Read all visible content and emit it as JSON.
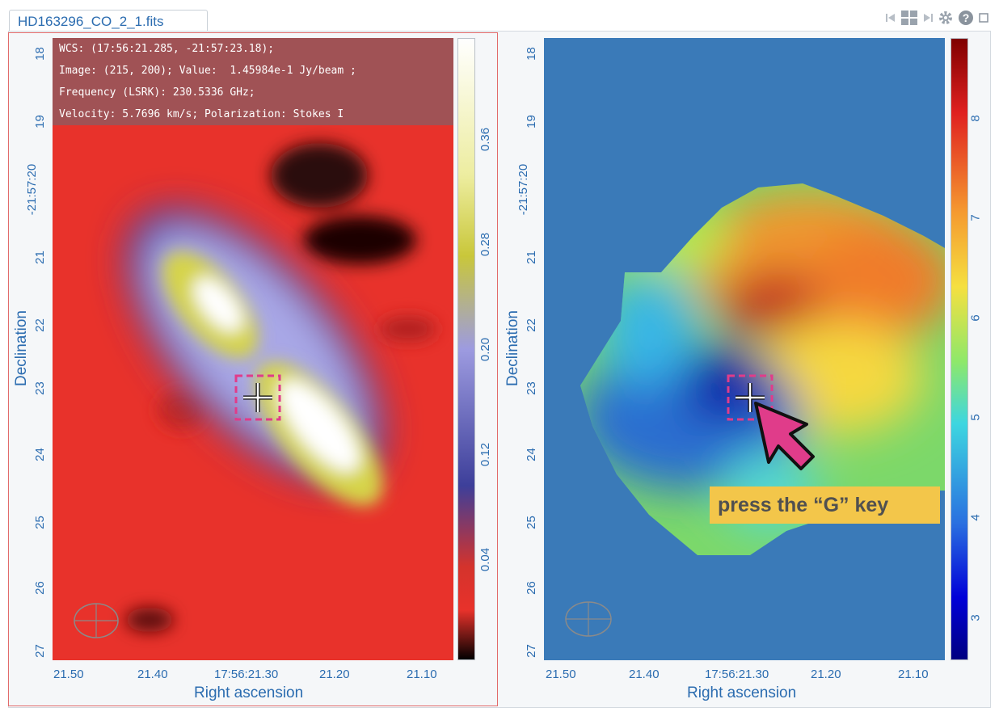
{
  "tab": {
    "title": "HD163296_CO_2_1.fits"
  },
  "toolbar": {
    "icons": [
      "first-frame-icon",
      "grid-layout-icon",
      "next-frame-icon",
      "gear-icon",
      "help-icon",
      "maximize-icon"
    ]
  },
  "cursor_info": {
    "wcs": "WCS: (17:56:21.285, -21:57:23.18);",
    "image": "Image: (215, 200); Value:  1.45984e-1 Jy/beam ;",
    "frequency": "Frequency (LSRK): 230.5336 GHz;",
    "velocity": "Velocity: 5.7696 km/s; Polarization: Stokes I"
  },
  "left_panel": {
    "x_axis_title": "Right ascension",
    "y_axis_title": "Declination",
    "x_ticks": [
      "21.50",
      "21.40",
      "17:56:21.30",
      "21.20",
      "21.10"
    ],
    "y_ticks": [
      "18",
      "19",
      "-21:57:20",
      "21",
      "22",
      "23",
      "24",
      "25",
      "26",
      "27"
    ],
    "colorbar_ticks": [
      "0.36",
      "0.28",
      "0.20",
      "0.12",
      "0.04"
    ]
  },
  "right_panel": {
    "x_axis_title": "Right ascension",
    "y_axis_title": "Declination",
    "x_ticks": [
      "21.50",
      "21.40",
      "17:56:21.30",
      "21.20",
      "21.10"
    ],
    "y_ticks": [
      "18",
      "19",
      "-21:57:20",
      "21",
      "22",
      "23",
      "24",
      "25",
      "26",
      "27"
    ],
    "colorbar_ticks": [
      "8",
      "7",
      "6",
      "5",
      "4",
      "3"
    ]
  },
  "callout": {
    "text": "press the “G” key"
  },
  "colors": {
    "accent": "#2b6cb0",
    "highlight": "#e03c8a",
    "callout_bg": "#f3c64a",
    "active_border": "#e26b6b",
    "background_fill": "#3a7ab8"
  }
}
